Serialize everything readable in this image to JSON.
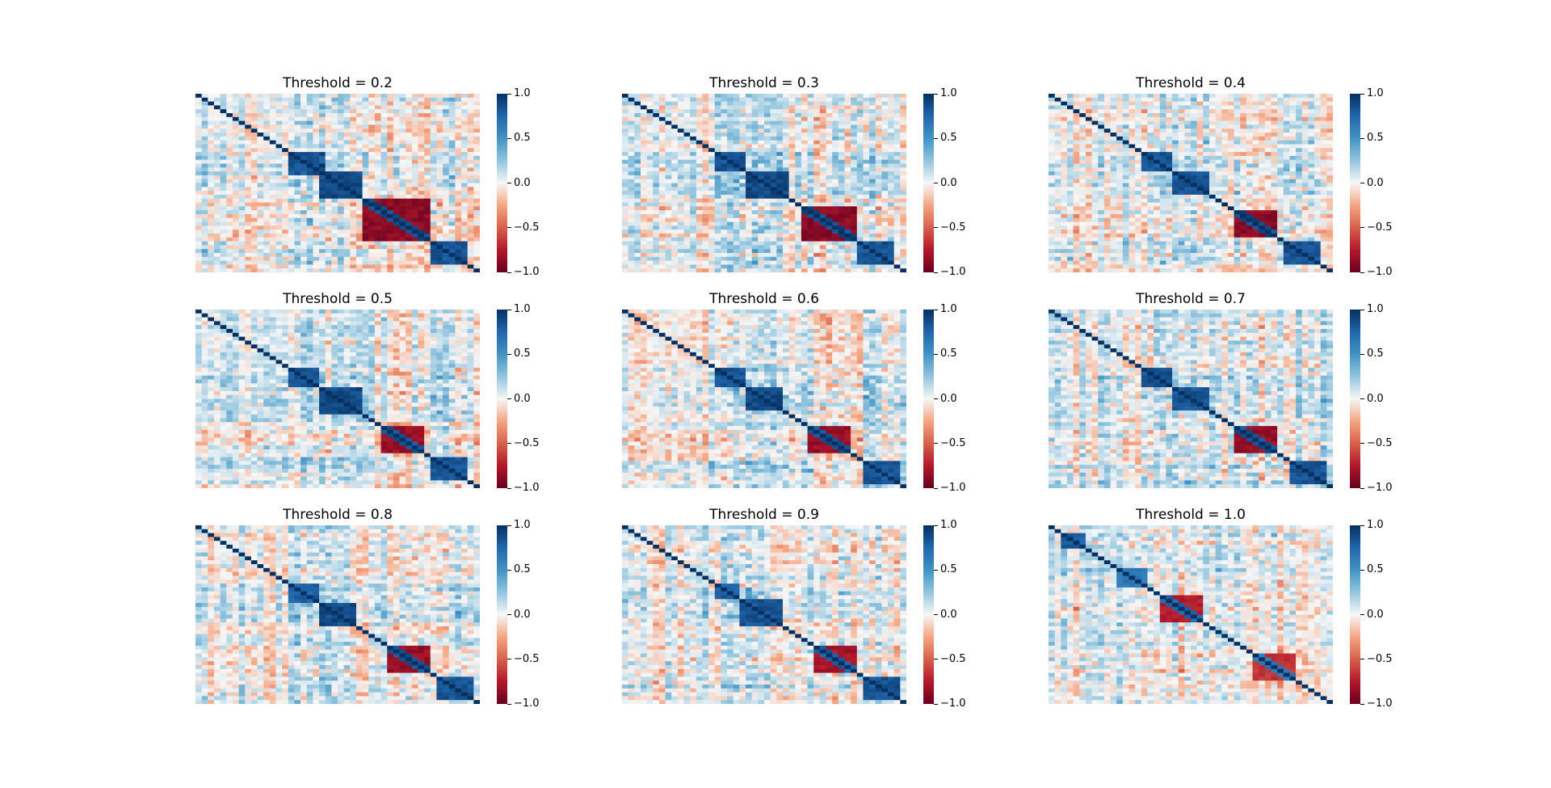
{
  "chart_data": {
    "type": "heatmap",
    "panels": [
      {
        "title": "Threshold = 0.2"
      },
      {
        "title": "Threshold = 0.3"
      },
      {
        "title": "Threshold = 0.4"
      },
      {
        "title": "Threshold = 0.5"
      },
      {
        "title": "Threshold = 0.6"
      },
      {
        "title": "Threshold = 0.7"
      },
      {
        "title": "Threshold = 0.8"
      },
      {
        "title": "Threshold = 0.9"
      },
      {
        "title": "Threshold = 1.0"
      }
    ],
    "colorbar": {
      "range": [
        -1.0,
        1.0
      ],
      "ticks": [
        {
          "value": 1.0,
          "label": "1.0"
        },
        {
          "value": 0.5,
          "label": "0.5"
        },
        {
          "value": 0.0,
          "label": "0.0"
        },
        {
          "value": -0.5,
          "label": "−0.5"
        },
        {
          "value": -1.0,
          "label": "−1.0"
        }
      ],
      "colormap": "RdBu"
    }
  }
}
